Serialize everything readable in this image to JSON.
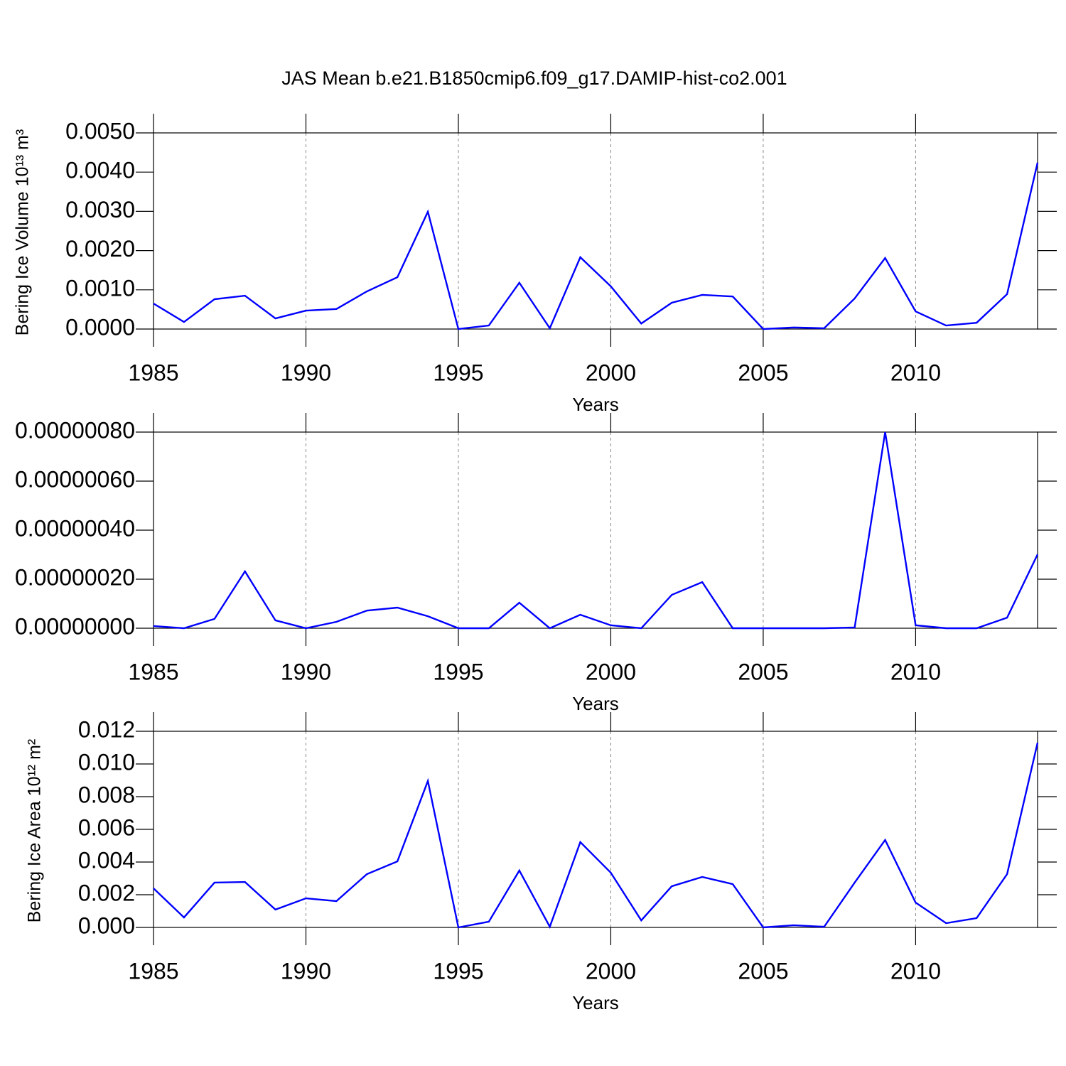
{
  "chart_data": [
    {
      "type": "line",
      "title": "JAS Mean b.e21.B1850cmip6.f09_g17.DAMIP-hist-co2.001",
      "ylabel": "Bering Ice Volume 10¹³ m³",
      "xlabel": "Years",
      "x": [
        1985,
        1986,
        1987,
        1988,
        1989,
        1990,
        1991,
        1992,
        1993,
        1994,
        1995,
        1996,
        1997,
        1998,
        1999,
        2000,
        2001,
        2002,
        2003,
        2004,
        2005,
        2006,
        2007,
        2008,
        2009,
        2010,
        2011,
        2012,
        2013,
        2014
      ],
      "series": [
        {
          "color": "#0000ff",
          "values": [
            0.00065,
            0.00018,
            0.00076,
            0.00085,
            0.00027,
            0.00047,
            0.00051,
            0.00096,
            0.00132,
            0.00299,
            0.0,
            9e-05,
            0.00118,
            2e-05,
            0.00183,
            0.00109,
            0.00014,
            0.00067,
            0.00087,
            0.00083,
            0.0,
            4e-05,
            2e-05,
            0.00078,
            0.00181,
            0.00045,
            9e-05,
            0.00016,
            0.00089,
            0.00424
          ]
        }
      ],
      "xlim": [
        1985,
        2014
      ],
      "xticks": [
        1985,
        1990,
        1995,
        2000,
        2005,
        2010
      ],
      "ylim": [
        0,
        0.005
      ],
      "yticks": [
        {
          "value": 0,
          "label": "0.0000"
        },
        {
          "value": 0.001,
          "label": "0.0010"
        },
        {
          "value": 0.002,
          "label": "0.0020"
        },
        {
          "value": 0.003,
          "label": "0.0030"
        },
        {
          "value": 0.004,
          "label": "0.0040"
        },
        {
          "value": 0.005,
          "label": "0.0050"
        }
      ],
      "grid": true
    },
    {
      "type": "line",
      "xlabel": "Years",
      "x": [
        1985,
        1986,
        1987,
        1988,
        1989,
        1990,
        1991,
        1992,
        1993,
        1994,
        1995,
        1996,
        1997,
        1998,
        1999,
        2000,
        2001,
        2002,
        2003,
        2004,
        2005,
        2006,
        2007,
        2008,
        2009,
        2010,
        2011,
        2012,
        2013,
        2014
      ],
      "series": [
        {
          "color": "#0000ff",
          "values": [
            9e-09,
            0,
            3.8e-08,
            2.32e-07,
            3.2e-08,
            0,
            2.6e-08,
            7.2e-08,
            8.4e-08,
            4.9e-08,
            0,
            0,
            1.04e-07,
            0,
            5.5e-08,
            1.2e-08,
            0,
            1.36e-07,
            1.88e-07,
            0,
            0,
            0,
            0,
            3e-09,
            8e-07,
            1.2e-08,
            0,
            0,
            4.3e-08,
            3.01e-07
          ]
        }
      ],
      "xlim": [
        1985,
        2014
      ],
      "xticks": [
        1985,
        1990,
        1995,
        2000,
        2005,
        2010
      ],
      "ylim": [
        0,
        8e-07
      ],
      "yticks": [
        {
          "value": 0,
          "label": "0.00000000"
        },
        {
          "value": 2e-07,
          "label": "0.00000020"
        },
        {
          "value": 4e-07,
          "label": "0.00000040"
        },
        {
          "value": 6e-07,
          "label": "0.00000060"
        },
        {
          "value": 8e-07,
          "label": "0.00000080"
        }
      ],
      "grid": true
    },
    {
      "type": "line",
      "ylabel": "Bering Ice Area 10¹² m²",
      "xlabel": "Years",
      "x": [
        1985,
        1986,
        1987,
        1988,
        1989,
        1990,
        1991,
        1992,
        1993,
        1994,
        1995,
        1996,
        1997,
        1998,
        1999,
        2000,
        2001,
        2002,
        2003,
        2004,
        2005,
        2006,
        2007,
        2008,
        2009,
        2010,
        2011,
        2012,
        2013,
        2014
      ],
      "series": [
        {
          "color": "#0000ff",
          "values": [
            0.00239,
            0.00061,
            0.00274,
            0.00278,
            0.00109,
            0.00178,
            0.00161,
            0.00326,
            0.00404,
            0.00896,
            0.0,
            0.00035,
            0.00348,
            4e-05,
            0.00522,
            0.00335,
            0.00043,
            0.00252,
            0.00309,
            0.00265,
            0.0,
            0.00013,
            4e-05,
            0.00274,
            0.00535,
            0.00152,
            0.00026,
            0.00057,
            0.00326,
            0.0113
          ]
        }
      ],
      "xlim": [
        1985,
        2014
      ],
      "xticks": [
        1985,
        1990,
        1995,
        2000,
        2005,
        2010
      ],
      "ylim": [
        0,
        0.012
      ],
      "yticks": [
        {
          "value": 0,
          "label": "0.000"
        },
        0.002,
        0.004,
        0.006,
        0.008,
        {
          "value": 0.01,
          "label": "0.010"
        },
        0.012
      ],
      "grid": true
    }
  ]
}
